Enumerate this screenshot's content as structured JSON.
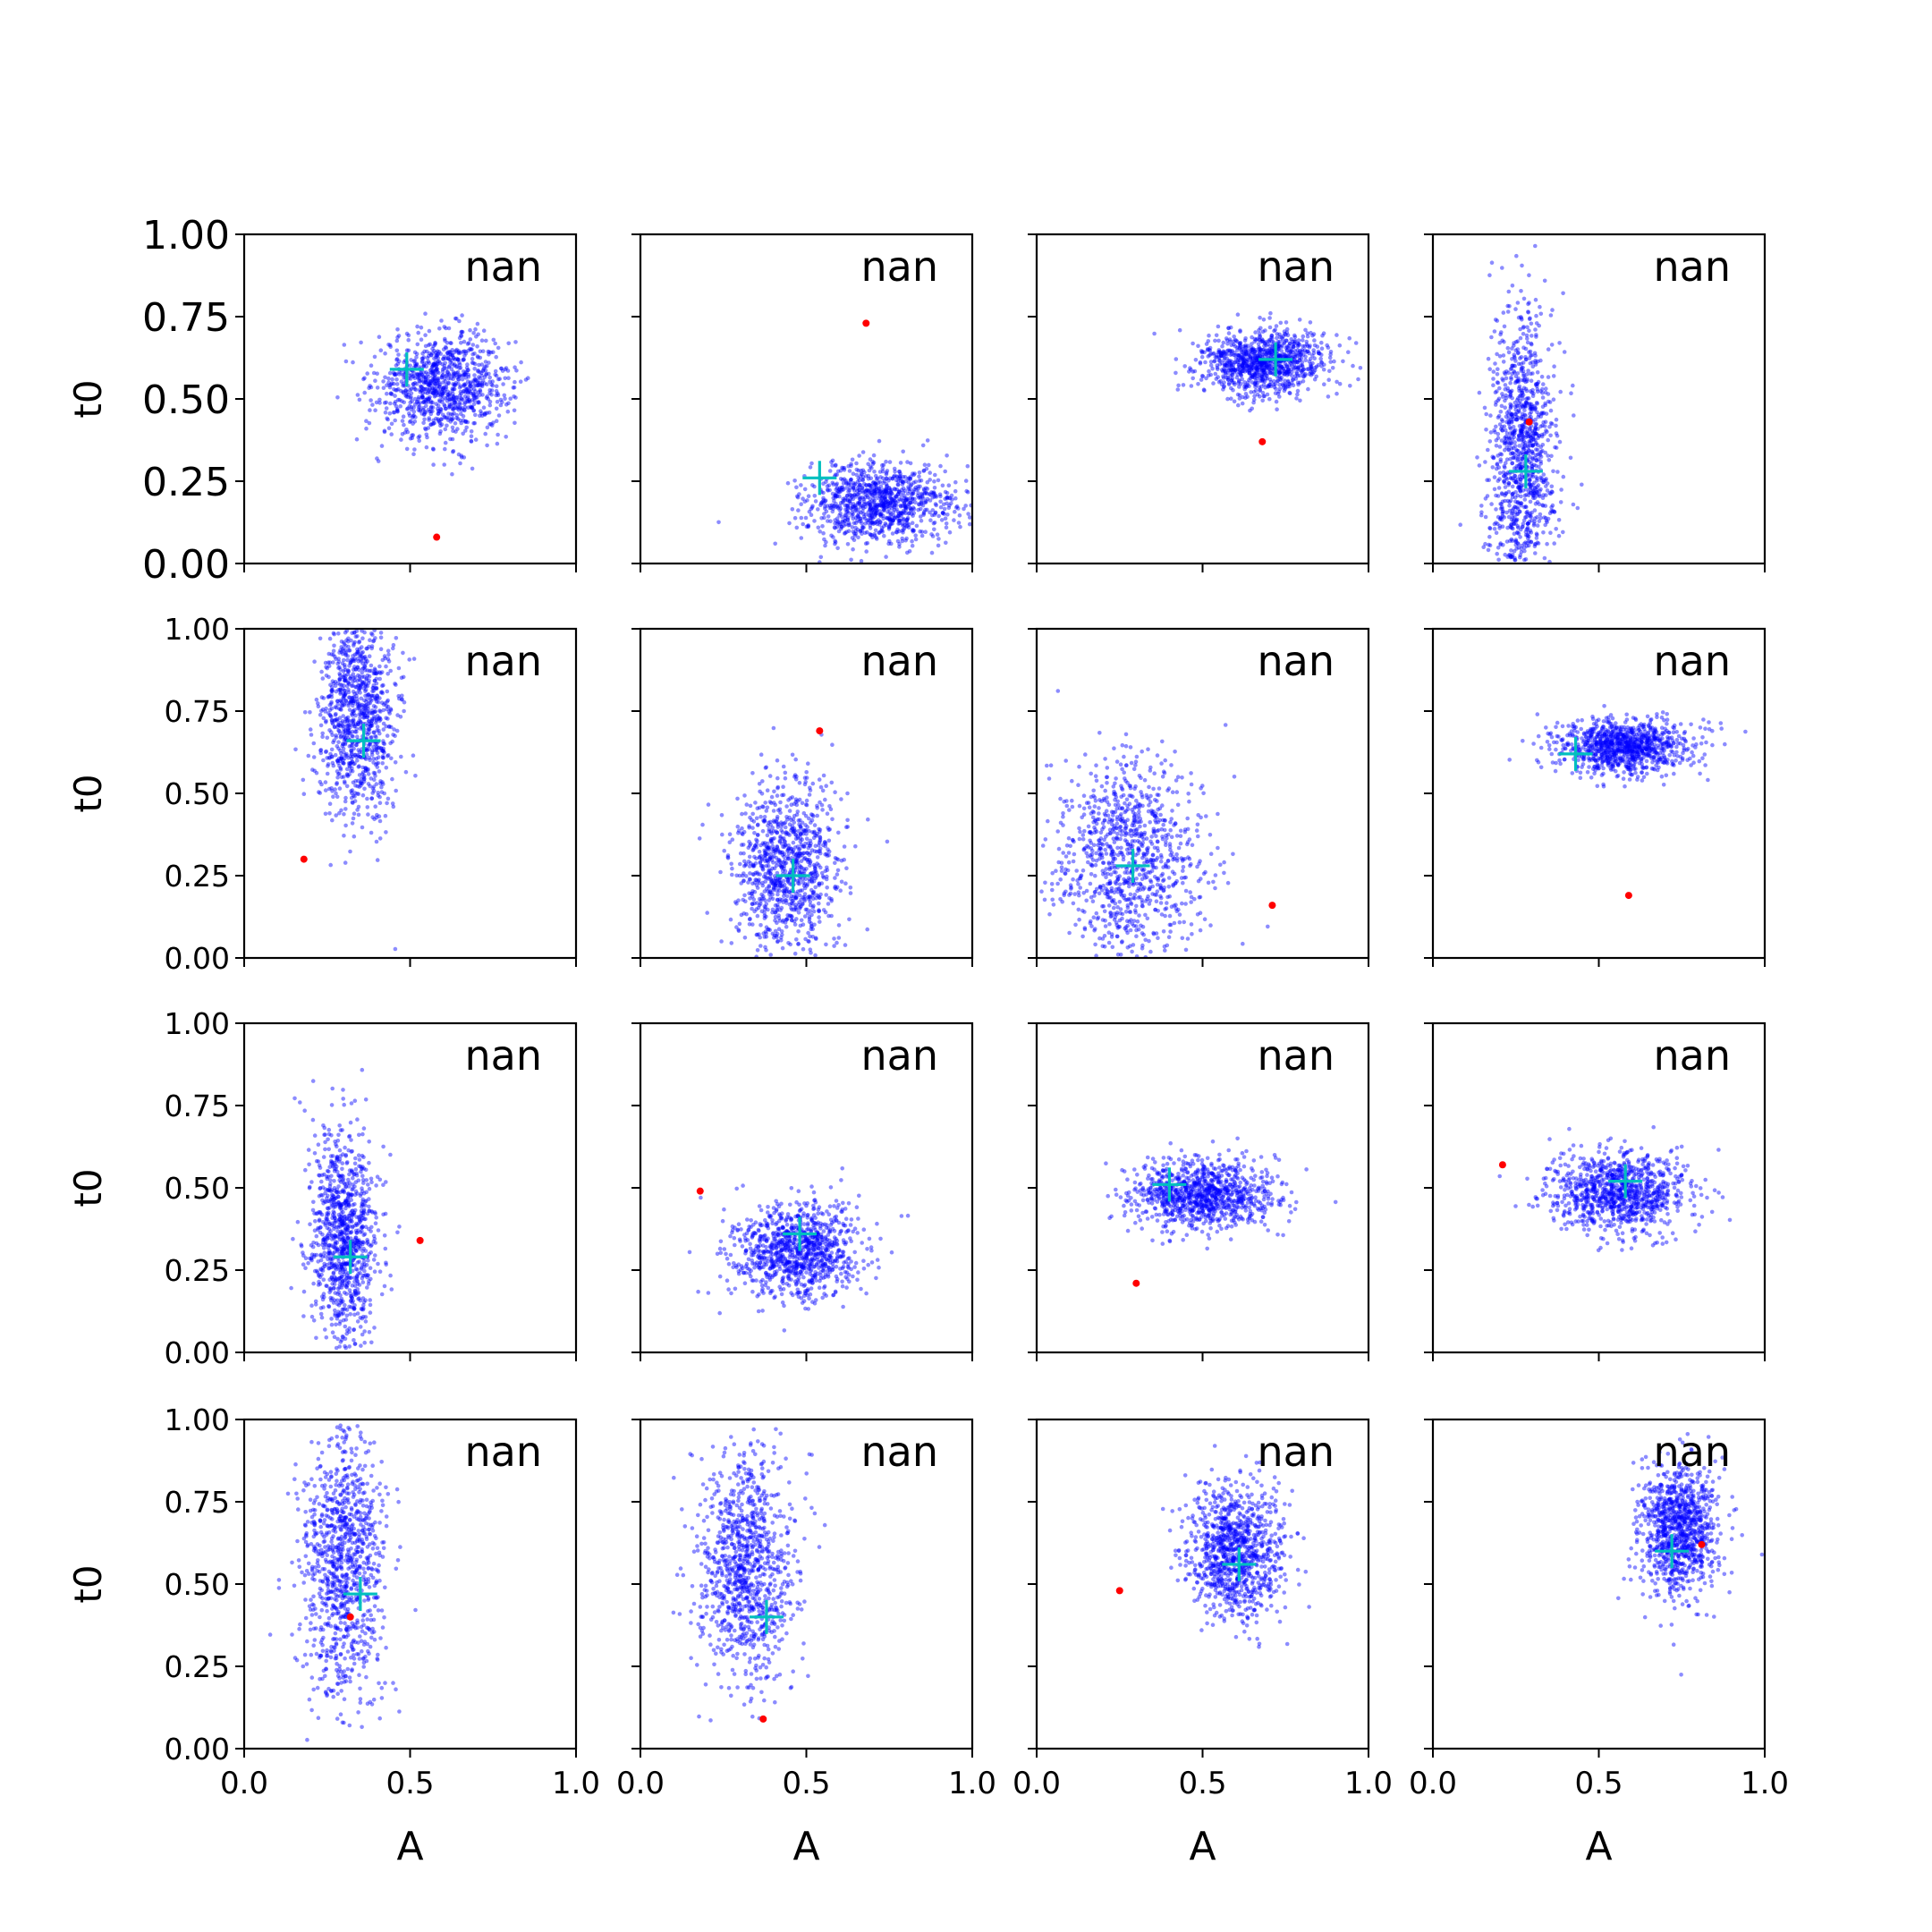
{
  "chart_data": {
    "type": "scatter",
    "layout": {
      "rows": 4,
      "cols": 4
    },
    "xlabel": "A",
    "ylabel": "t0",
    "xlim": [
      0.0,
      1.0
    ],
    "ylim": [
      0.0,
      1.0
    ],
    "x_ticks": [
      "0.0",
      "0.5",
      "1.0"
    ],
    "y_ticks": [
      "0.00",
      "0.25",
      "0.50",
      "0.75",
      "1.00"
    ],
    "colors": {
      "samples": "#0000ff",
      "mean": "#00bfbf",
      "truth": "#ff0000"
    },
    "panels": [
      {
        "label": "nan",
        "cloud": {
          "mean": [
            0.6,
            0.54
          ],
          "spread": [
            0.1,
            0.08
          ],
          "n": 1000,
          "clip": false
        },
        "marker": [
          0.49,
          0.59
        ],
        "truth": [
          0.58,
          0.08
        ]
      },
      {
        "label": "nan",
        "cloud": {
          "mean": [
            0.72,
            0.18
          ],
          "spread": [
            0.11,
            0.06
          ],
          "n": 1000,
          "clip": true
        },
        "marker": [
          0.54,
          0.26
        ],
        "truth": [
          0.68,
          0.73
        ]
      },
      {
        "label": "nan",
        "cloud": {
          "mean": [
            0.68,
            0.61
          ],
          "spread": [
            0.1,
            0.05
          ],
          "n": 1000,
          "clip": false
        },
        "marker": [
          0.72,
          0.62
        ],
        "truth": [
          0.68,
          0.37
        ]
      },
      {
        "label": "nan",
        "cloud": {
          "mean": [
            0.27,
            0.33
          ],
          "spread": [
            0.05,
            0.22
          ],
          "n": 1100,
          "clip": true
        },
        "marker": [
          0.28,
          0.28
        ],
        "truth": [
          0.29,
          0.43
        ]
      },
      {
        "label": "nan",
        "cloud": {
          "mean": [
            0.34,
            0.74
          ],
          "spread": [
            0.06,
            0.16
          ],
          "n": 1000,
          "clip": true
        },
        "marker": [
          0.36,
          0.66
        ],
        "truth": [
          0.18,
          0.3
        ]
      },
      {
        "label": "nan",
        "cloud": {
          "mean": [
            0.44,
            0.28
          ],
          "spread": [
            0.08,
            0.13
          ],
          "n": 1000,
          "clip": true
        },
        "marker": [
          0.46,
          0.25
        ],
        "truth": [
          0.54,
          0.69
        ]
      },
      {
        "label": "nan",
        "cloud": {
          "mean": [
            0.28,
            0.3
          ],
          "spread": [
            0.11,
            0.15
          ],
          "n": 1000,
          "clip": true
        },
        "marker": [
          0.29,
          0.28
        ],
        "truth": [
          0.71,
          0.16
        ]
      },
      {
        "label": "nan",
        "cloud": {
          "mean": [
            0.57,
            0.64
          ],
          "spread": [
            0.1,
            0.04
          ],
          "n": 1000,
          "clip": false
        },
        "marker": [
          0.43,
          0.62
        ],
        "truth": [
          0.59,
          0.19
        ]
      },
      {
        "label": "nan",
        "cloud": {
          "mean": [
            0.3,
            0.35
          ],
          "spread": [
            0.05,
            0.16
          ],
          "n": 1000,
          "clip": true
        },
        "marker": [
          0.32,
          0.29
        ],
        "truth": [
          0.53,
          0.34
        ]
      },
      {
        "label": "nan",
        "cloud": {
          "mean": [
            0.48,
            0.31
          ],
          "spread": [
            0.09,
            0.07
          ],
          "n": 1000,
          "clip": true
        },
        "marker": [
          0.48,
          0.36
        ],
        "truth": [
          0.18,
          0.49
        ]
      },
      {
        "label": "nan",
        "cloud": {
          "mean": [
            0.5,
            0.48
          ],
          "spread": [
            0.11,
            0.05
          ],
          "n": 1000,
          "clip": false
        },
        "marker": [
          0.4,
          0.51
        ],
        "truth": [
          0.3,
          0.21
        ]
      },
      {
        "label": "nan",
        "cloud": {
          "mean": [
            0.56,
            0.49
          ],
          "spread": [
            0.1,
            0.06
          ],
          "n": 1000,
          "clip": false
        },
        "marker": [
          0.58,
          0.52
        ],
        "truth": [
          0.21,
          0.57
        ]
      },
      {
        "label": "nan",
        "cloud": {
          "mean": [
            0.3,
            0.55
          ],
          "spread": [
            0.06,
            0.2
          ],
          "n": 1000,
          "clip": true
        },
        "marker": [
          0.35,
          0.47
        ],
        "truth": [
          0.32,
          0.4
        ]
      },
      {
        "label": "nan",
        "cloud": {
          "mean": [
            0.32,
            0.55
          ],
          "spread": [
            0.07,
            0.17
          ],
          "n": 1000,
          "clip": true
        },
        "marker": [
          0.38,
          0.4
        ],
        "truth": [
          0.37,
          0.09
        ]
      },
      {
        "label": "nan",
        "cloud": {
          "mean": [
            0.6,
            0.6
          ],
          "spread": [
            0.07,
            0.1
          ],
          "n": 1000,
          "clip": true
        },
        "marker": [
          0.61,
          0.56
        ],
        "truth": [
          0.25,
          0.48
        ]
      },
      {
        "label": "nan",
        "cloud": {
          "mean": [
            0.74,
            0.66
          ],
          "spread": [
            0.06,
            0.1
          ],
          "n": 1000,
          "clip": true
        },
        "marker": [
          0.72,
          0.6
        ],
        "truth": [
          0.81,
          0.62
        ]
      }
    ]
  }
}
